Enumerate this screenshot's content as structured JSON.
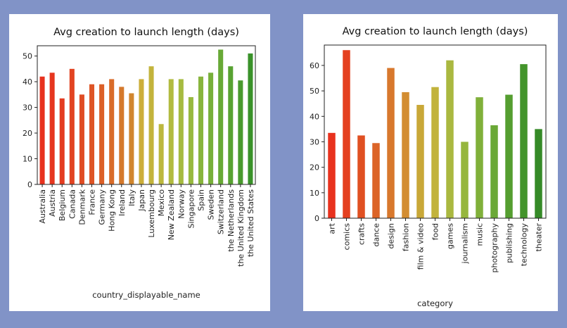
{
  "chart_data": [
    {
      "type": "bar",
      "title": "Avg creation to launch length (days)",
      "xlabel": "country_displayable_name",
      "ylabel": "",
      "ylim": [
        0,
        54
      ],
      "yticks": [
        0,
        10,
        20,
        30,
        40,
        50
      ],
      "categories": [
        "Australia",
        "Austria",
        "Belgium",
        "Canada",
        "Denmark",
        "France",
        "Germany",
        "Hong Kong",
        "Ireland",
        "Italy",
        "Japan",
        "Luxembourg",
        "Mexico",
        "New Zealand",
        "Norway",
        "Singapore",
        "Spain",
        "Sweden",
        "Switzerland",
        "the Netherlands",
        "the United Kingdom",
        "the United States"
      ],
      "values": [
        42,
        43.5,
        33.5,
        45,
        35,
        39,
        39,
        41,
        38,
        35.5,
        41,
        46,
        23.5,
        41,
        41,
        34,
        42,
        43.5,
        52.5,
        46,
        40.5,
        51
      ],
      "colors": [
        "#e8321e",
        "#e6361f",
        "#e43c20",
        "#e24422",
        "#e04c24",
        "#de5526",
        "#dc6028",
        "#d96c2a",
        "#d5792c",
        "#d1862e",
        "#ccae3a",
        "#c3b43c",
        "#bcb83e",
        "#b2bb40",
        "#a6bb40",
        "#98b93f",
        "#88b53d",
        "#78b03a",
        "#68a936",
        "#58a232",
        "#499a2e",
        "#3a922a"
      ]
    },
    {
      "type": "bar",
      "title": "Avg creation to launch length (days)",
      "xlabel": "category",
      "ylabel": "",
      "ylim": [
        0,
        68
      ],
      "yticks": [
        0,
        10,
        20,
        30,
        40,
        50,
        60
      ],
      "categories": [
        "art",
        "comics",
        "crafts",
        "dance",
        "design",
        "fashion",
        "film & video",
        "food",
        "games",
        "journalism",
        "music",
        "photography",
        "publishing",
        "technology",
        "theater"
      ],
      "values": [
        33.5,
        66,
        32.5,
        29.5,
        59,
        49.5,
        44.5,
        51.5,
        62,
        30,
        47.5,
        36.5,
        48.5,
        60.5,
        35
      ],
      "colors": [
        "#e8321e",
        "#e4401f",
        "#e05022",
        "#dc6428",
        "#d8782d",
        "#d38d32",
        "#c9a838",
        "#c2b33c",
        "#aab840",
        "#96b63e",
        "#80b03a",
        "#6aa836",
        "#559e30",
        "#43942b",
        "#358a27"
      ]
    }
  ]
}
